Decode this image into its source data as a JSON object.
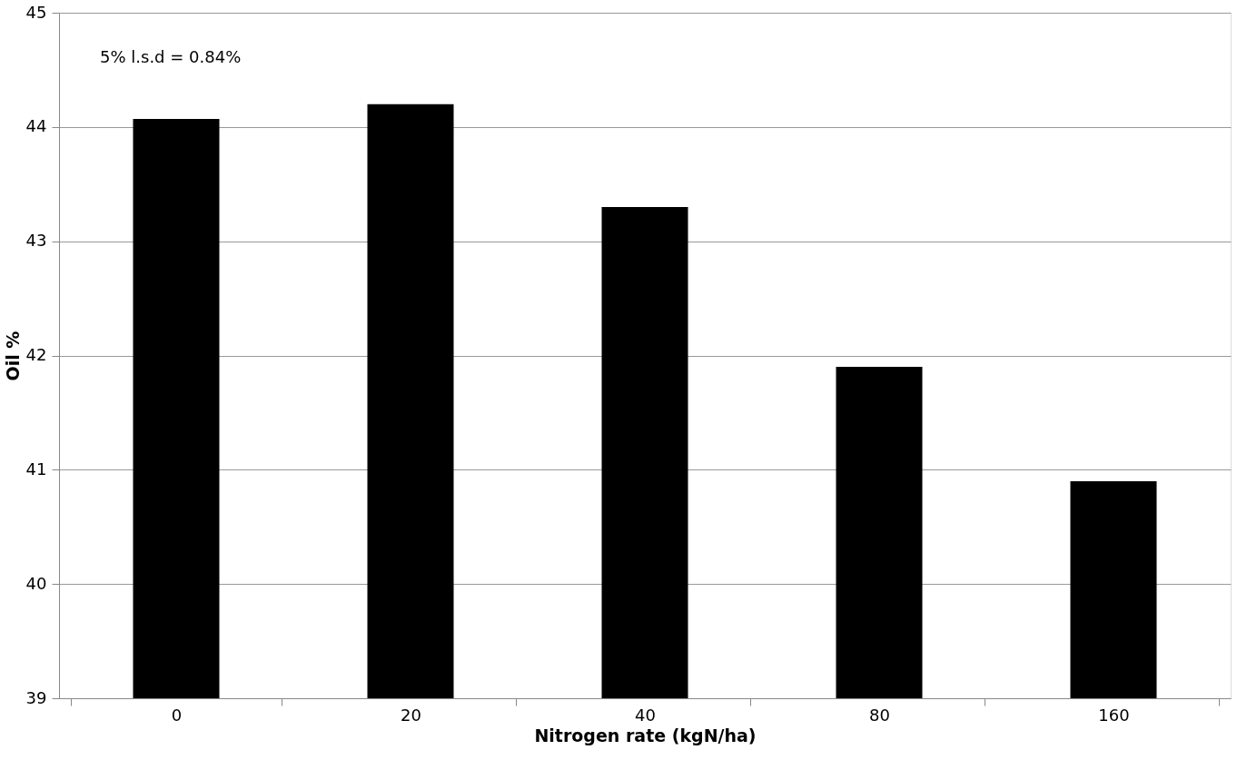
{
  "chart_data": {
    "type": "bar",
    "xlabel": "Nitrogen rate (kgN/ha)",
    "ylabel": "Oil %",
    "categories": [
      "0",
      "20",
      "40",
      "80",
      "160"
    ],
    "values": [
      44.07,
      44.2,
      43.3,
      41.9,
      40.9
    ],
    "color": "#000000",
    "ylim": [
      39,
      45
    ],
    "yticks": [
      39,
      40,
      41,
      42,
      43,
      44,
      45
    ],
    "grid": "y",
    "annotations": [
      "5% l.s.d = 0.84%"
    ]
  }
}
